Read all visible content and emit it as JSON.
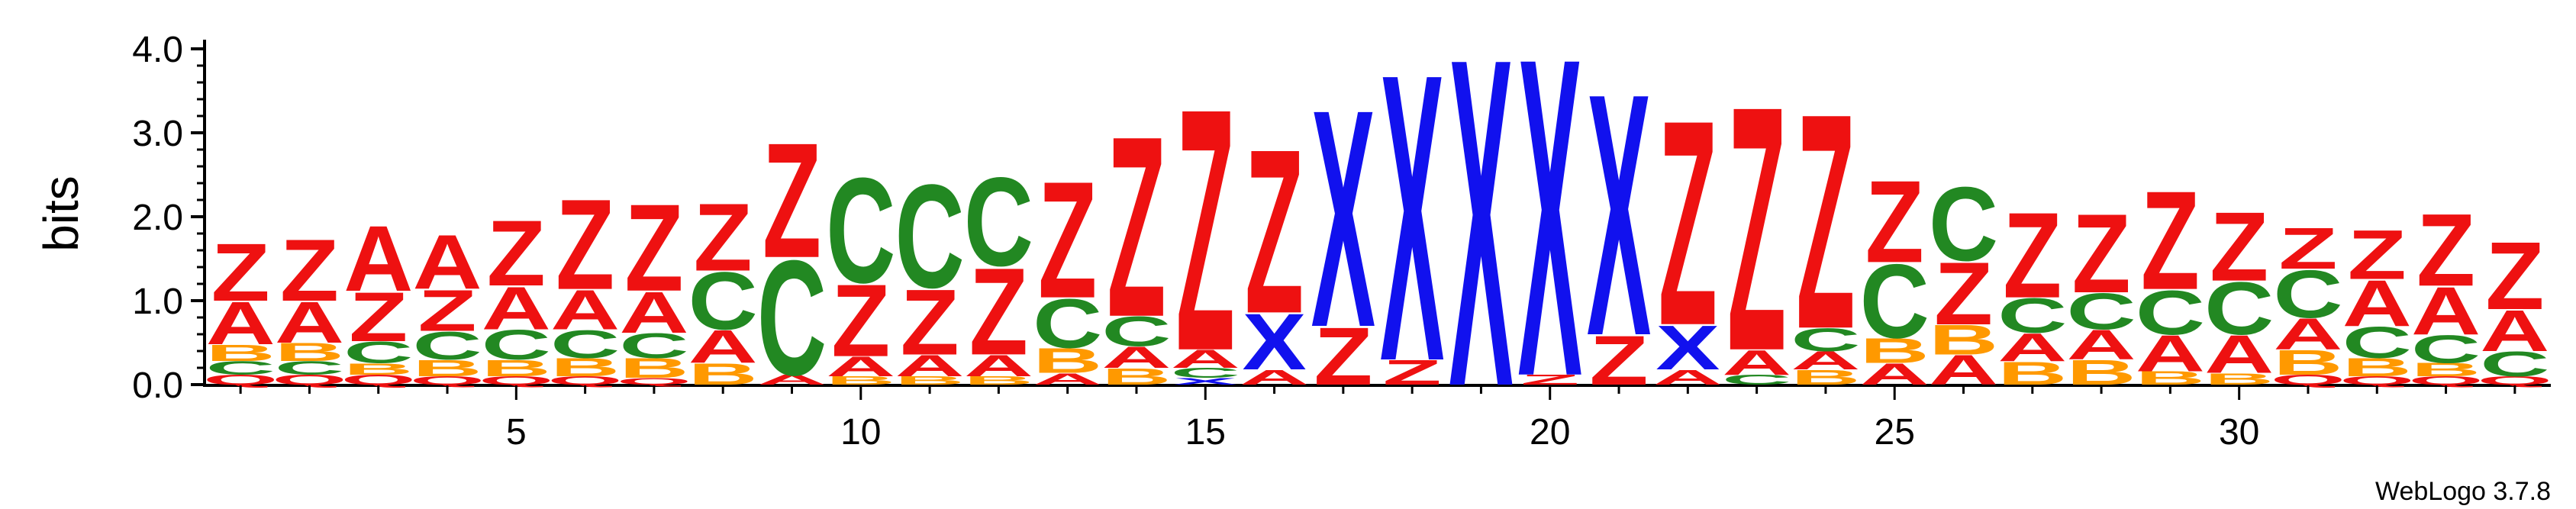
{
  "chart_data": {
    "type": "sequence-logo",
    "ylabel": "bits",
    "ylim": [
      0,
      4.0
    ],
    "y_ticks": [
      "0.0",
      "1.0",
      "2.0",
      "3.0",
      "4.0"
    ],
    "y_tick_values": [
      0,
      1,
      2,
      3,
      4
    ],
    "x_ticks": [
      "5",
      "10",
      "15",
      "20",
      "25",
      "30"
    ],
    "x_tick_values": [
      5,
      10,
      15,
      20,
      25,
      30
    ],
    "num_positions": 34,
    "branding": "WebLogo 3.7.8",
    "colors": {
      "Z": "#ee1111",
      "A": "#ee1111",
      "C": "#228822",
      "B": "#ff9900",
      "X": "#1111ee",
      "Q": "#ee1111"
    },
    "positions": [
      {
        "pos": 1,
        "stack": [
          {
            "l": "Q",
            "h": 0.12
          },
          {
            "l": "C",
            "h": 0.16
          },
          {
            "l": "B",
            "h": 0.2
          },
          {
            "l": "A",
            "h": 0.52
          },
          {
            "l": "Z",
            "h": 0.7
          }
        ]
      },
      {
        "pos": 2,
        "stack": [
          {
            "l": "Q",
            "h": 0.12
          },
          {
            "l": "C",
            "h": 0.16
          },
          {
            "l": "B",
            "h": 0.22
          },
          {
            "l": "A",
            "h": 0.5
          },
          {
            "l": "Z",
            "h": 0.75
          }
        ]
      },
      {
        "pos": 3,
        "stack": [
          {
            "l": "Q",
            "h": 0.12
          },
          {
            "l": "B",
            "h": 0.14
          },
          {
            "l": "C",
            "h": 0.26
          },
          {
            "l": "Z",
            "h": 0.6
          },
          {
            "l": "A",
            "h": 0.8
          }
        ]
      },
      {
        "pos": 4,
        "stack": [
          {
            "l": "Q",
            "h": 0.1
          },
          {
            "l": "B",
            "h": 0.2
          },
          {
            "l": "C",
            "h": 0.34
          },
          {
            "l": "Z",
            "h": 0.5
          },
          {
            "l": "A",
            "h": 0.66
          }
        ]
      },
      {
        "pos": 5,
        "stack": [
          {
            "l": "Q",
            "h": 0.1
          },
          {
            "l": "B",
            "h": 0.2
          },
          {
            "l": "C",
            "h": 0.36
          },
          {
            "l": "A",
            "h": 0.52
          },
          {
            "l": "Z",
            "h": 0.8
          }
        ]
      },
      {
        "pos": 6,
        "stack": [
          {
            "l": "Q",
            "h": 0.1
          },
          {
            "l": "B",
            "h": 0.22
          },
          {
            "l": "C",
            "h": 0.34
          },
          {
            "l": "A",
            "h": 0.48
          },
          {
            "l": "Z",
            "h": 1.1
          }
        ]
      },
      {
        "pos": 7,
        "stack": [
          {
            "l": "Q",
            "h": 0.08
          },
          {
            "l": "B",
            "h": 0.24
          },
          {
            "l": "C",
            "h": 0.3
          },
          {
            "l": "A",
            "h": 0.5
          },
          {
            "l": "Z",
            "h": 1.06
          }
        ]
      },
      {
        "pos": 8,
        "stack": [
          {
            "l": "B",
            "h": 0.26
          },
          {
            "l": "A",
            "h": 0.4
          },
          {
            "l": "C",
            "h": 0.7
          },
          {
            "l": "Z",
            "h": 0.82
          }
        ]
      },
      {
        "pos": 9,
        "stack": [
          {
            "l": "A",
            "h": 0.12
          },
          {
            "l": "C",
            "h": 1.4
          },
          {
            "l": "Z",
            "h": 1.4
          }
        ]
      },
      {
        "pos": 10,
        "stack": [
          {
            "l": "B",
            "h": 0.1
          },
          {
            "l": "A",
            "h": 0.24
          },
          {
            "l": "Z",
            "h": 0.88
          },
          {
            "l": "C",
            "h": 1.28
          }
        ]
      },
      {
        "pos": 11,
        "stack": [
          {
            "l": "B",
            "h": 0.1
          },
          {
            "l": "A",
            "h": 0.26
          },
          {
            "l": "Z",
            "h": 0.8
          },
          {
            "l": "C",
            "h": 1.26
          }
        ]
      },
      {
        "pos": 12,
        "stack": [
          {
            "l": "B",
            "h": 0.1
          },
          {
            "l": "A",
            "h": 0.26
          },
          {
            "l": "Z",
            "h": 1.06
          },
          {
            "l": "C",
            "h": 1.08
          }
        ]
      },
      {
        "pos": 13,
        "stack": [
          {
            "l": "A",
            "h": 0.14
          },
          {
            "l": "B",
            "h": 0.3
          },
          {
            "l": "C",
            "h": 0.6
          },
          {
            "l": "Z",
            "h": 1.42
          }
        ]
      },
      {
        "pos": 14,
        "stack": [
          {
            "l": "B",
            "h": 0.2
          },
          {
            "l": "A",
            "h": 0.26
          },
          {
            "l": "C",
            "h": 0.36
          },
          {
            "l": "Z",
            "h": 2.2
          }
        ]
      },
      {
        "pos": 15,
        "stack": [
          {
            "l": "X",
            "h": 0.08
          },
          {
            "l": "C",
            "h": 0.12
          },
          {
            "l": "A",
            "h": 0.22
          },
          {
            "l": "Z",
            "h": 2.95
          }
        ]
      },
      {
        "pos": 16,
        "stack": [
          {
            "l": "A",
            "h": 0.18
          },
          {
            "l": "X",
            "h": 0.68
          },
          {
            "l": "Z",
            "h": 2.0
          }
        ]
      },
      {
        "pos": 17,
        "stack": [
          {
            "l": "Z",
            "h": 0.7
          },
          {
            "l": "X",
            "h": 2.65
          }
        ]
      },
      {
        "pos": 18,
        "stack": [
          {
            "l": "Z",
            "h": 0.3
          },
          {
            "l": "X",
            "h": 3.5
          }
        ]
      },
      {
        "pos": 19,
        "stack": [
          {
            "l": "X",
            "h": 4.0
          }
        ]
      },
      {
        "pos": 20,
        "stack": [
          {
            "l": "Z",
            "h": 0.12
          },
          {
            "l": "X",
            "h": 3.88
          }
        ]
      },
      {
        "pos": 21,
        "stack": [
          {
            "l": "Z",
            "h": 0.6
          },
          {
            "l": "X",
            "h": 2.95
          }
        ]
      },
      {
        "pos": 22,
        "stack": [
          {
            "l": "A",
            "h": 0.18
          },
          {
            "l": "X",
            "h": 0.54
          },
          {
            "l": "Z",
            "h": 2.5
          }
        ]
      },
      {
        "pos": 23,
        "stack": [
          {
            "l": "C",
            "h": 0.12
          },
          {
            "l": "A",
            "h": 0.3
          },
          {
            "l": "Z",
            "h": 2.98
          }
        ]
      },
      {
        "pos": 24,
        "stack": [
          {
            "l": "B",
            "h": 0.18
          },
          {
            "l": "A",
            "h": 0.22
          },
          {
            "l": "C",
            "h": 0.28
          },
          {
            "l": "Z",
            "h": 2.62
          }
        ]
      },
      {
        "pos": 25,
        "stack": [
          {
            "l": "A",
            "h": 0.26
          },
          {
            "l": "B",
            "h": 0.3
          },
          {
            "l": "C",
            "h": 0.9
          },
          {
            "l": "Z",
            "h": 1.0
          }
        ]
      },
      {
        "pos": 26,
        "stack": [
          {
            "l": "A",
            "h": 0.36
          },
          {
            "l": "B",
            "h": 0.36
          },
          {
            "l": "Z",
            "h": 0.76
          },
          {
            "l": "C",
            "h": 0.9
          }
        ]
      },
      {
        "pos": 27,
        "stack": [
          {
            "l": "B",
            "h": 0.28
          },
          {
            "l": "A",
            "h": 0.34
          },
          {
            "l": "C",
            "h": 0.42
          },
          {
            "l": "Z",
            "h": 1.04
          }
        ]
      },
      {
        "pos": 28,
        "stack": [
          {
            "l": "B",
            "h": 0.3
          },
          {
            "l": "A",
            "h": 0.36
          },
          {
            "l": "C",
            "h": 0.44
          },
          {
            "l": "Z",
            "h": 0.96
          }
        ]
      },
      {
        "pos": 29,
        "stack": [
          {
            "l": "B",
            "h": 0.16
          },
          {
            "l": "A",
            "h": 0.44
          },
          {
            "l": "C",
            "h": 0.54
          },
          {
            "l": "Z",
            "h": 1.2
          }
        ]
      },
      {
        "pos": 30,
        "stack": [
          {
            "l": "B",
            "h": 0.14
          },
          {
            "l": "A",
            "h": 0.46
          },
          {
            "l": "C",
            "h": 0.64
          },
          {
            "l": "Z",
            "h": 0.84
          }
        ]
      },
      {
        "pos": 31,
        "stack": [
          {
            "l": "Q",
            "h": 0.12
          },
          {
            "l": "B",
            "h": 0.3
          },
          {
            "l": "A",
            "h": 0.38
          },
          {
            "l": "C",
            "h": 0.58
          },
          {
            "l": "Z",
            "h": 0.5
          }
        ]
      },
      {
        "pos": 32,
        "stack": [
          {
            "l": "Q",
            "h": 0.1
          },
          {
            "l": "B",
            "h": 0.22
          },
          {
            "l": "C",
            "h": 0.38
          },
          {
            "l": "A",
            "h": 0.56
          },
          {
            "l": "Z",
            "h": 0.6
          }
        ]
      },
      {
        "pos": 33,
        "stack": [
          {
            "l": "Q",
            "h": 0.1
          },
          {
            "l": "B",
            "h": 0.16
          },
          {
            "l": "C",
            "h": 0.34
          },
          {
            "l": "A",
            "h": 0.58
          },
          {
            "l": "Z",
            "h": 0.88
          }
        ]
      },
      {
        "pos": 34,
        "stack": [
          {
            "l": "Q",
            "h": 0.1
          },
          {
            "l": "C",
            "h": 0.3
          },
          {
            "l": "A",
            "h": 0.5
          },
          {
            "l": "Z",
            "h": 0.82
          }
        ]
      }
    ]
  }
}
